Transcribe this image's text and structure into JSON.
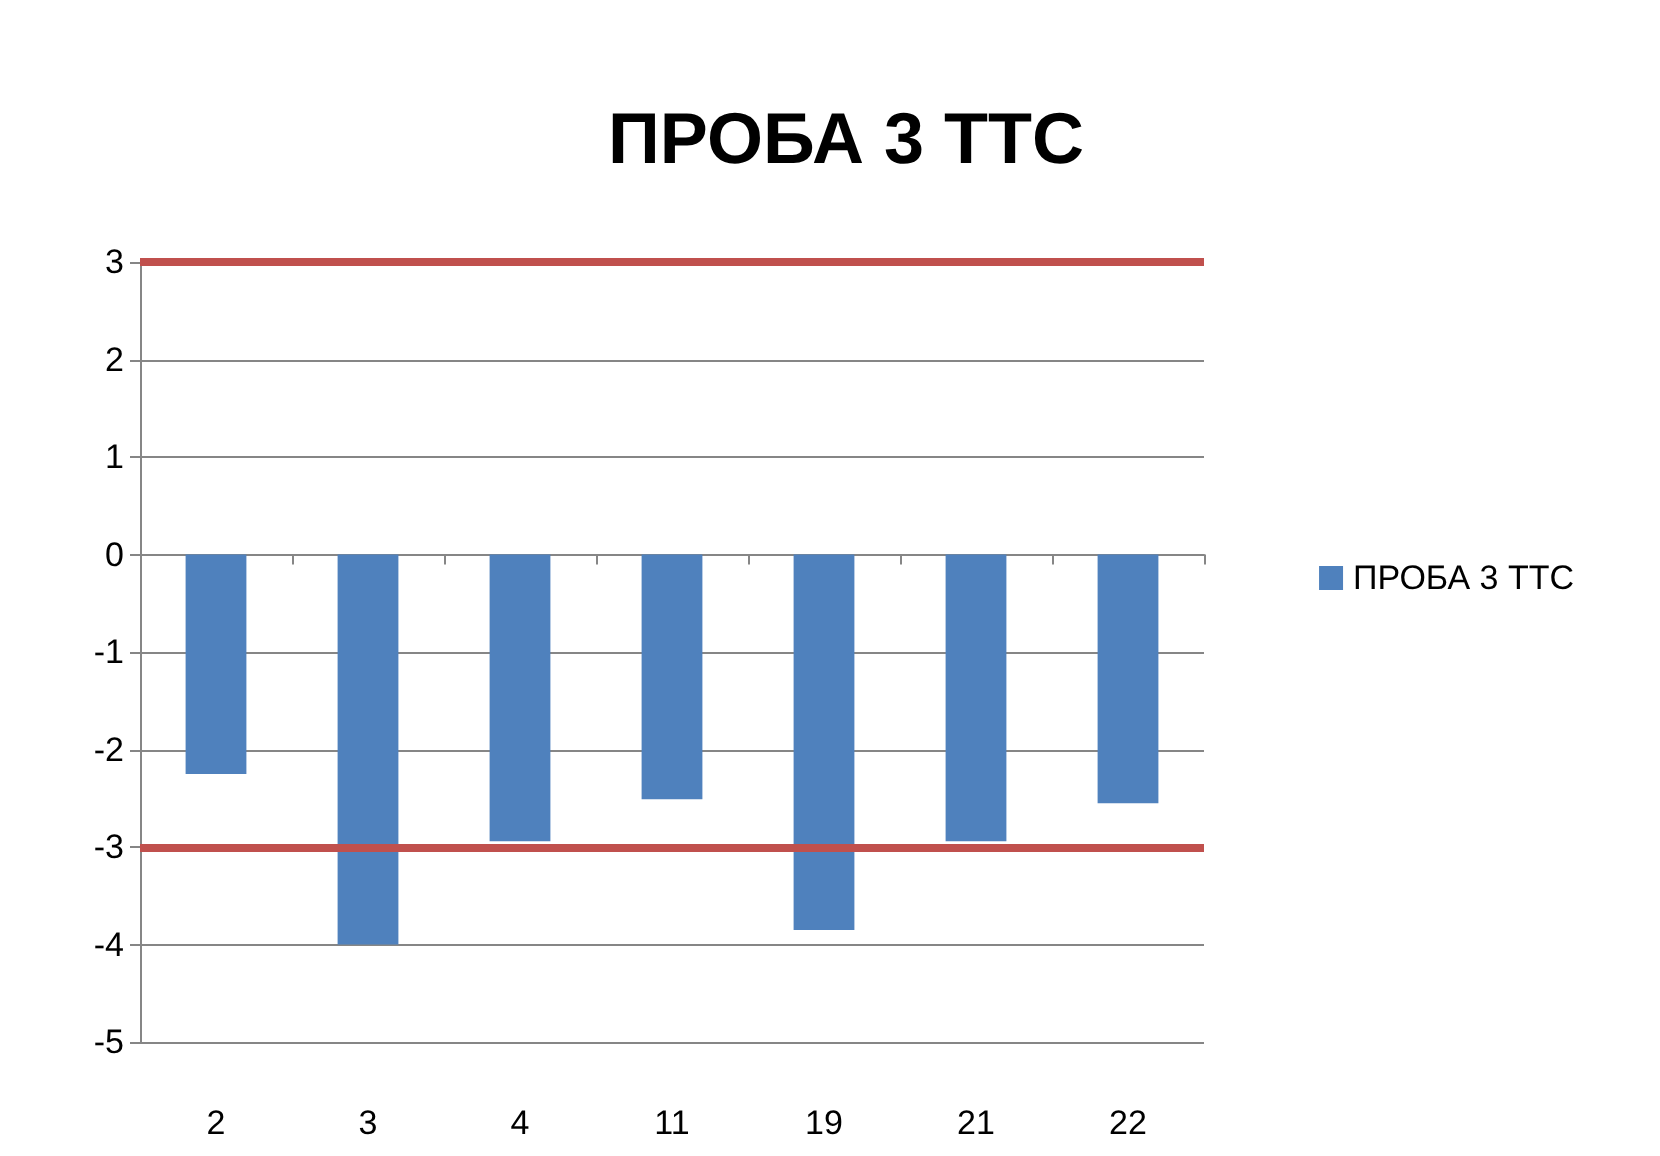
{
  "chart_data": {
    "type": "bar",
    "title": "ПРОБА 3 ТТС",
    "categories": [
      "2",
      "3",
      "4",
      "11",
      "19",
      "21",
      "22"
    ],
    "series": [
      {
        "name": "ПРОБА 3 ТТС",
        "color": "#4f81bd",
        "values": [
          -2.25,
          -4.0,
          -2.94,
          -2.51,
          -3.85,
          -2.94,
          -2.55
        ]
      }
    ],
    "ylim": [
      -5,
      3
    ],
    "yticks": [
      -5,
      -4,
      -3,
      -2,
      -1,
      0,
      1,
      2,
      3
    ],
    "grid": "y",
    "legend": "right",
    "ref_lines": [
      {
        "axis": "y",
        "value": 3,
        "color": "#c0504d"
      },
      {
        "axis": "y",
        "value": -3,
        "color": "#c0504d"
      }
    ]
  }
}
